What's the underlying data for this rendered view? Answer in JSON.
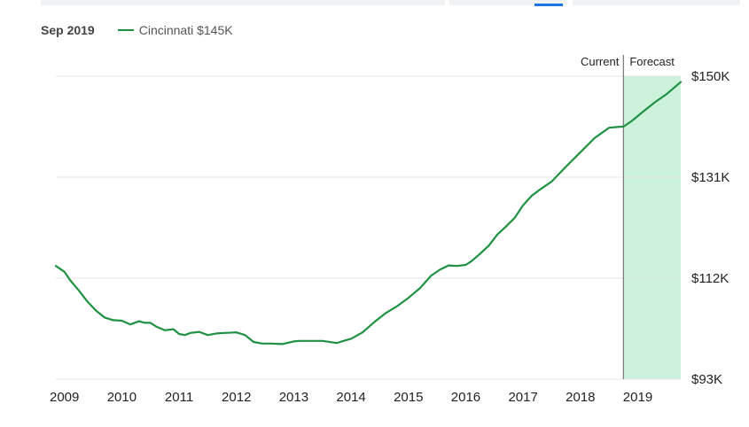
{
  "legend": {
    "date": "Sep 2019",
    "series_label": "Cincinnati $145K"
  },
  "colors": {
    "line": "#1f9142",
    "forecast_fill": "#cdf2dc",
    "grid": "#e6e6e6",
    "current_marker": "#777777"
  },
  "markers": {
    "current": "Current",
    "forecast": "Forecast"
  },
  "chart_data": {
    "type": "line",
    "grid": true,
    "y_axis_position": "right",
    "ylim": [
      93000,
      150000
    ],
    "x_range": [
      2008.85,
      2019.75
    ],
    "forecast_start": 2018.75,
    "x_ticks": [
      2009,
      2010,
      2011,
      2012,
      2013,
      2014,
      2015,
      2016,
      2017,
      2018,
      2019
    ],
    "x_tick_labels": [
      "2009",
      "2010",
      "2011",
      "2012",
      "2013",
      "2014",
      "2015",
      "2016",
      "2017",
      "2018",
      "2019"
    ],
    "y_ticks": [
      93000,
      112000,
      131000,
      150000
    ],
    "y_tick_labels": [
      "$93K",
      "$112K",
      "$131K",
      "$150K"
    ],
    "series": [
      {
        "x": [
          2008.85,
          2009.0,
          2009.1,
          2009.25,
          2009.4,
          2009.55,
          2009.7,
          2009.85,
          2010.0,
          2010.15,
          2010.3,
          2010.4,
          2010.5,
          2010.6,
          2010.75,
          2010.9,
          2011.0,
          2011.1,
          2011.2,
          2011.35,
          2011.5,
          2011.65,
          2011.8,
          2012.0,
          2012.15,
          2012.3,
          2012.45,
          2012.6,
          2012.8,
          2013.0,
          2013.1,
          2013.25,
          2013.5,
          2013.75,
          2013.9,
          2014.0,
          2014.2,
          2014.4,
          2014.6,
          2014.8,
          2015.0,
          2015.2,
          2015.4,
          2015.55,
          2015.7,
          2015.85,
          2016.0,
          2016.1,
          2016.25,
          2016.4,
          2016.55,
          2016.7,
          2016.85,
          2017.0,
          2017.15,
          2017.3,
          2017.5,
          2017.75,
          2018.0,
          2018.25,
          2018.5,
          2018.7,
          2018.75,
          2018.9,
          2019.1,
          2019.3,
          2019.5,
          2019.75
        ],
        "y": [
          114300,
          113200,
          111600,
          109700,
          107600,
          105900,
          104600,
          104100,
          104000,
          103300,
          103900,
          103600,
          103600,
          102900,
          102200,
          102400,
          101500,
          101300,
          101700,
          101900,
          101300,
          101600,
          101700,
          101800,
          101300,
          100000,
          99700,
          99700,
          99600,
          100100,
          100200,
          100200,
          100200,
          99800,
          100300,
          100600,
          101800,
          103700,
          105400,
          106700,
          108300,
          110100,
          112500,
          113600,
          114400,
          114300,
          114500,
          115200,
          116600,
          118100,
          120200,
          121700,
          123300,
          125700,
          127500,
          128700,
          130200,
          133000,
          135700,
          138400,
          140300,
          140500,
          140500,
          141600,
          143400,
          145100,
          146600,
          148900
        ],
        "color": "#1f9142"
      }
    ]
  }
}
